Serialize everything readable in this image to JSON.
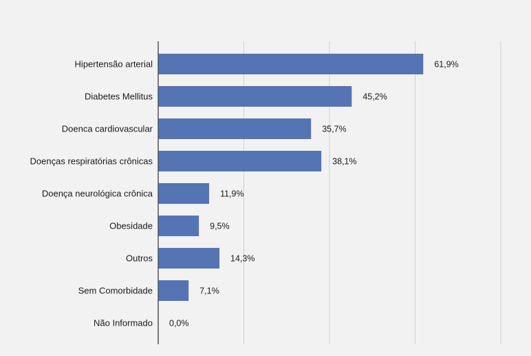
{
  "chart_data": {
    "type": "bar",
    "orientation": "horizontal",
    "categories": [
      "Hipertensão arterial",
      "Diabetes Mellitus",
      "Doenca cardiovascular",
      "Doenças respiratórias crônicas",
      "Doença neurológica crônica",
      "Obesidade",
      "Outros",
      "Sem Comorbidade",
      "Não Informado"
    ],
    "values": [
      61.9,
      45.2,
      35.7,
      38.1,
      11.9,
      9.5,
      14.3,
      7.1,
      0.0
    ],
    "data_labels": [
      "61,9%",
      "45,2%",
      "35,7%",
      "38,1%",
      "11,9%",
      "9,5%",
      "14,3%",
      "7,1%",
      "0,0%"
    ],
    "xlim": [
      0,
      80
    ],
    "grid": true,
    "bar_color": "#5574b3",
    "gridline_color": "#cfcfcf",
    "axis_color": "#555555",
    "title": "",
    "xlabel": "",
    "ylabel": ""
  }
}
